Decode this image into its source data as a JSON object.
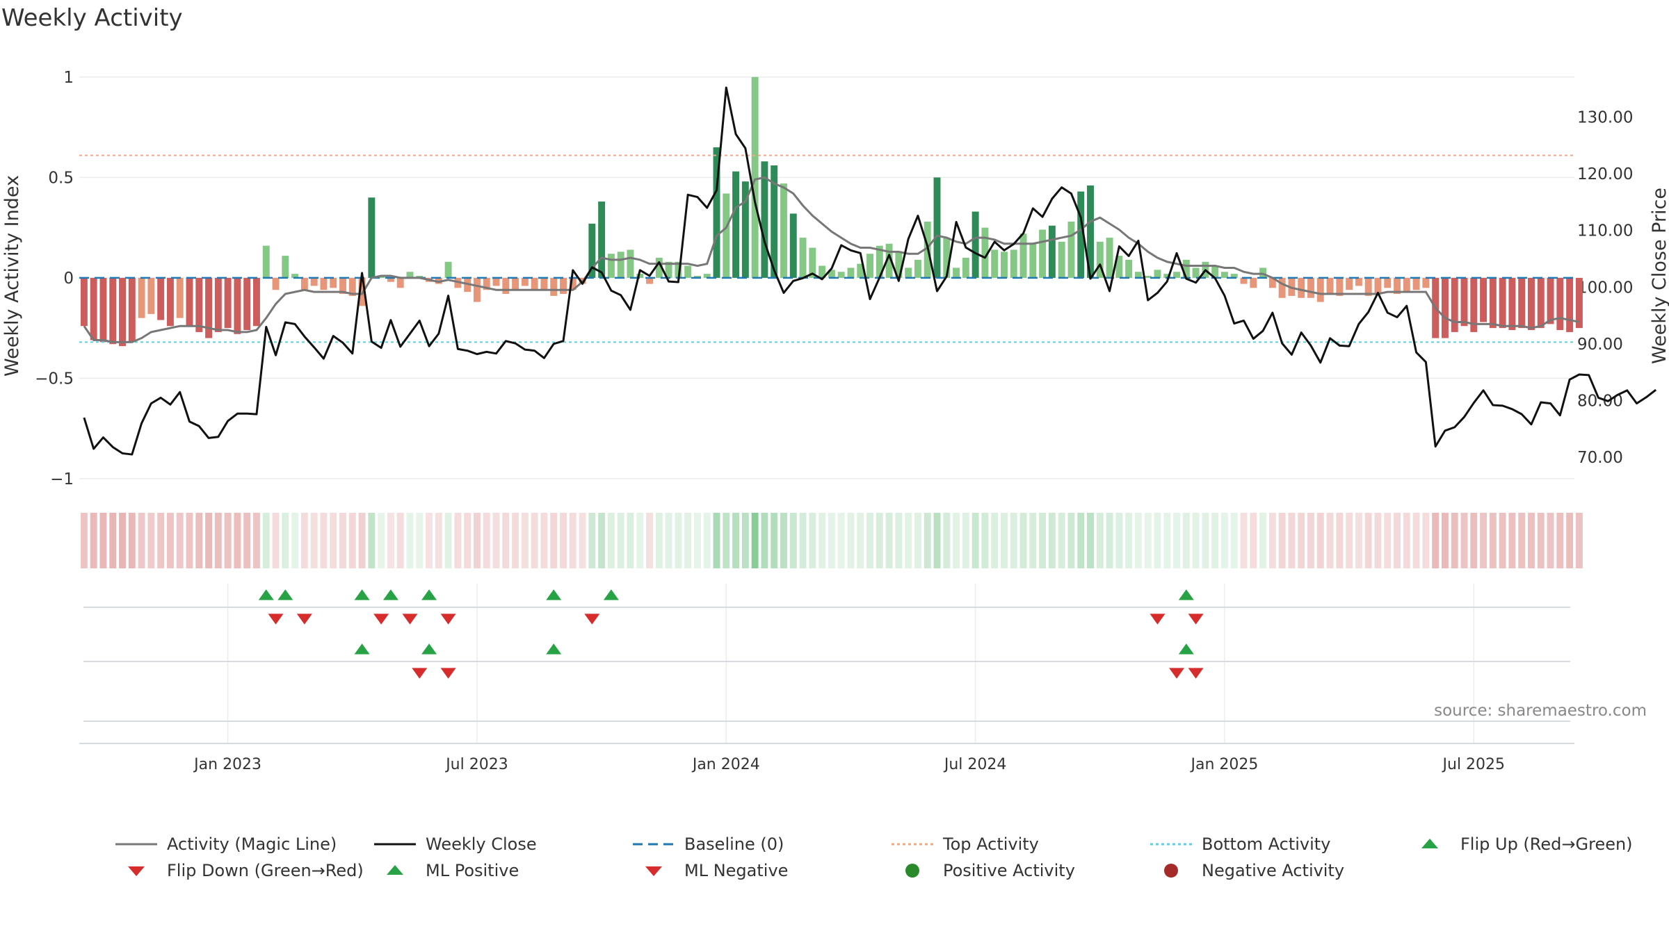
{
  "title": "Weekly Activity",
  "source": "source: sharemaestro.com",
  "colors": {
    "magic": "#777777",
    "close": "#111111",
    "baseline": "#1f77b4",
    "top": "#f4a582",
    "bottom": "#5bd0e0",
    "up": "#27a244",
    "down": "#d62c2c",
    "pos_dark": "#2e8b57",
    "pos_light": "#85c785",
    "neg_dark": "#cd5c5c",
    "neg_light": "#e8967a"
  },
  "chart_data": {
    "type": "bar",
    "title": "Weekly Activity",
    "ylabel": "Weekly Activity Index",
    "y2label": "Weekly Close Price",
    "ylim": [
      -1.08,
      1.1
    ],
    "y2lim": [
      63.4,
      140.6
    ],
    "yticks": [
      {
        "v": 1,
        "label": "1"
      },
      {
        "v": 0.5,
        "label": "0.5"
      },
      {
        "v": 0,
        "label": "0"
      },
      {
        "v": -0.5,
        "label": "−0.5"
      },
      {
        "v": -1,
        "label": "−1"
      }
    ],
    "y2ticks": [
      {
        "v": 130,
        "label": "130.00"
      },
      {
        "v": 120,
        "label": "120.00"
      },
      {
        "v": 110,
        "label": "110.00"
      },
      {
        "v": 100,
        "label": "100.00"
      },
      {
        "v": 90,
        "label": "90.00"
      },
      {
        "v": 80,
        "label": "80.00"
      },
      {
        "v": 70,
        "label": "70.00"
      }
    ],
    "xlim": [
      0,
      156
    ],
    "xticks": [
      {
        "w": 15,
        "label": "Jan 2023"
      },
      {
        "w": 41,
        "label": "Jul 2023"
      },
      {
        "w": 67,
        "label": "Jan 2024"
      },
      {
        "w": 93,
        "label": "Jul 2024"
      },
      {
        "w": 119,
        "label": "Jan 2025"
      },
      {
        "w": 145,
        "label": "Jul 2025"
      }
    ],
    "top_activity": 0.61,
    "bottom_activity": -0.32,
    "activity": [
      -0.24,
      -0.31,
      -0.32,
      -0.33,
      -0.34,
      -0.32,
      -0.2,
      -0.18,
      -0.21,
      -0.24,
      -0.2,
      -0.24,
      -0.27,
      -0.3,
      -0.27,
      -0.25,
      -0.28,
      -0.26,
      -0.24,
      0.16,
      -0.06,
      0.11,
      0.02,
      -0.06,
      -0.04,
      -0.06,
      -0.05,
      -0.08,
      -0.09,
      -0.14,
      0.4,
      0.01,
      -0.02,
      -0.05,
      0.03,
      0.01,
      -0.02,
      -0.03,
      0.08,
      -0.05,
      -0.07,
      -0.12,
      -0.06,
      -0.04,
      -0.08,
      -0.06,
      -0.04,
      -0.06,
      -0.06,
      -0.09,
      -0.08,
      -0.06,
      -0.03,
      0.27,
      0.38,
      0.12,
      0.13,
      0.14,
      0.02,
      -0.03,
      0.1,
      0.08,
      0.08,
      0.06,
      0.01,
      0.02,
      0.65,
      0.42,
      0.53,
      0.48,
      1.0,
      0.58,
      0.56,
      0.47,
      0.32,
      0.2,
      0.15,
      0.06,
      0.04,
      0.03,
      0.05,
      0.07,
      0.12,
      0.16,
      0.17,
      0.13,
      0.05,
      0.09,
      0.28,
      0.5,
      0.2,
      0.05,
      0.1,
      0.33,
      0.25,
      0.14,
      0.13,
      0.14,
      0.22,
      0.17,
      0.24,
      0.26,
      0.18,
      0.28,
      0.43,
      0.46,
      0.18,
      0.2,
      0.11,
      0.09,
      0.03,
      0.01,
      0.04,
      0.02,
      0.03,
      0.09,
      0.05,
      0.08,
      0.06,
      0.03,
      0.02,
      -0.03,
      -0.05,
      0.05,
      -0.05,
      -0.1,
      -0.09,
      -0.1,
      -0.1,
      -0.12,
      -0.08,
      -0.09,
      -0.06,
      -0.04,
      -0.09,
      -0.08,
      -0.05,
      -0.08,
      -0.07,
      -0.06,
      -0.05,
      -0.3,
      -0.3,
      -0.27,
      -0.24,
      -0.27,
      -0.22,
      -0.25,
      -0.25,
      -0.26,
      -0.25,
      -0.26,
      -0.25,
      -0.23,
      -0.26,
      -0.27,
      -0.25
    ],
    "magic_line": [
      -0.24,
      -0.31,
      -0.31,
      -0.32,
      -0.32,
      -0.32,
      -0.3,
      -0.27,
      -0.26,
      -0.25,
      -0.24,
      -0.24,
      -0.24,
      -0.25,
      -0.26,
      -0.26,
      -0.27,
      -0.27,
      -0.26,
      -0.2,
      -0.13,
      -0.08,
      -0.07,
      -0.06,
      -0.07,
      -0.07,
      -0.07,
      -0.07,
      -0.08,
      -0.08,
      0.0,
      0.01,
      0.01,
      0.0,
      0.0,
      0.0,
      -0.01,
      -0.02,
      -0.01,
      -0.02,
      -0.03,
      -0.04,
      -0.05,
      -0.06,
      -0.06,
      -0.06,
      -0.06,
      -0.06,
      -0.06,
      -0.06,
      -0.06,
      -0.06,
      -0.02,
      0.05,
      0.1,
      0.09,
      0.09,
      0.1,
      0.09,
      0.07,
      0.07,
      0.07,
      0.07,
      0.07,
      0.06,
      0.07,
      0.21,
      0.25,
      0.35,
      0.38,
      0.49,
      0.5,
      0.47,
      0.45,
      0.42,
      0.36,
      0.31,
      0.27,
      0.23,
      0.2,
      0.17,
      0.15,
      0.15,
      0.14,
      0.13,
      0.13,
      0.12,
      0.12,
      0.15,
      0.21,
      0.2,
      0.18,
      0.17,
      0.2,
      0.2,
      0.19,
      0.17,
      0.17,
      0.17,
      0.17,
      0.18,
      0.19,
      0.2,
      0.21,
      0.24,
      0.28,
      0.3,
      0.27,
      0.24,
      0.2,
      0.17,
      0.13,
      0.1,
      0.08,
      0.07,
      0.06,
      0.06,
      0.06,
      0.06,
      0.05,
      0.05,
      0.03,
      0.02,
      0.02,
      0.0,
      -0.03,
      -0.05,
      -0.06,
      -0.07,
      -0.08,
      -0.08,
      -0.08,
      -0.08,
      -0.08,
      -0.08,
      -0.08,
      -0.07,
      -0.07,
      -0.07,
      -0.07,
      -0.07,
      -0.15,
      -0.2,
      -0.22,
      -0.22,
      -0.23,
      -0.23,
      -0.23,
      -0.24,
      -0.24,
      -0.24,
      -0.25,
      -0.24,
      -0.21,
      -0.2,
      -0.21,
      -0.22
    ],
    "weekly_close": [
      77,
      71.5,
      73.5,
      71.8,
      70.7,
      70.5,
      76,
      79.5,
      80.5,
      79.3,
      81.5,
      76.3,
      75.5,
      73.4,
      73.6,
      76.4,
      77.7,
      77.7,
      77.6,
      93,
      88,
      93.8,
      93.5,
      91.3,
      89.4,
      87.4,
      91.4,
      90.2,
      88.3,
      102.5,
      90.4,
      89.3,
      94.2,
      89.5,
      91.8,
      94.1,
      89.6,
      91.8,
      98.5,
      89.1,
      88.8,
      88.2,
      88.6,
      88.3,
      90.5,
      90.1,
      89,
      88.8,
      87.5,
      90,
      90.5,
      103,
      100.6,
      103.5,
      102.6,
      99.4,
      98.6,
      96,
      103,
      102,
      104.4,
      101,
      100.9,
      116.3,
      115.9,
      114,
      117.1,
      135.2,
      127,
      124.5,
      115,
      108,
      103,
      99,
      101.1,
      101.6,
      102.4,
      101.4,
      103.3,
      107.4,
      106.5,
      106,
      97.9,
      101.7,
      105.7,
      101.1,
      108.5,
      112.6,
      107.2,
      99.3,
      101.9,
      111.5,
      107,
      106,
      105.2,
      108,
      106.5,
      107.6,
      109.5,
      113.9,
      112.4,
      115.6,
      117.6,
      116.5,
      112.3,
      101.5,
      104,
      99.3,
      107.2,
      105.5,
      108.2,
      97.7,
      99,
      101,
      106,
      101.5,
      100.8,
      103,
      101.6,
      98.5,
      93.6,
      94.1,
      90.9,
      92.3,
      95.5,
      90.1,
      88.1,
      92,
      89.7,
      86.7,
      91,
      89.7,
      89.6,
      93.5,
      95.6,
      99,
      95.5,
      94.7,
      96.7,
      88.5,
      86.8,
      71.9,
      74.7,
      75.3,
      77.1,
      79.6,
      81.8,
      79.2,
      79.1,
      78.5,
      77.6,
      75.8,
      79.7,
      79.5,
      77.4,
      83.7,
      84.6,
      84.5,
      80.5,
      79.9,
      81,
      81.8,
      79.5,
      80.6,
      81.9
    ],
    "markers": {
      "flip_up": [
        19,
        21,
        29,
        32,
        36,
        49,
        55,
        115
      ],
      "flip_down": [
        20,
        23,
        31,
        34,
        38,
        53,
        112,
        116
      ],
      "ml_positive": [
        29,
        36,
        49,
        115
      ],
      "ml_negative": [
        35,
        38,
        114,
        116
      ]
    }
  },
  "legend": [
    {
      "label": "Activity (Magic Line)",
      "kind": "line",
      "color": "#777777",
      "dash": ""
    },
    {
      "label": "Weekly Close",
      "kind": "line",
      "color": "#111111",
      "dash": ""
    },
    {
      "label": "Baseline (0)",
      "kind": "line",
      "color": "#1f77b4",
      "dash": "14,8"
    },
    {
      "label": "Top Activity",
      "kind": "line",
      "color": "#f4a582",
      "dash": "4,4"
    },
    {
      "label": "Bottom Activity",
      "kind": "line",
      "color": "#5bd0e0",
      "dash": "4,4"
    },
    {
      "label": "Flip Up (Red→Green)",
      "kind": "up",
      "color": "#27a244",
      "dash": ""
    },
    {
      "label": "Flip Down (Green→Red)",
      "kind": "down",
      "color": "#d62c2c",
      "dash": ""
    },
    {
      "label": "ML Positive",
      "kind": "up",
      "color": "#27a244",
      "dash": ""
    },
    {
      "label": "ML Negative",
      "kind": "down",
      "color": "#d62c2c",
      "dash": ""
    },
    {
      "label": "Positive Activity",
      "kind": "dot",
      "color": "#2a8a2a",
      "dash": ""
    },
    {
      "label": "Negative Activity",
      "kind": "dot",
      "color": "#a52a2a",
      "dash": ""
    }
  ]
}
